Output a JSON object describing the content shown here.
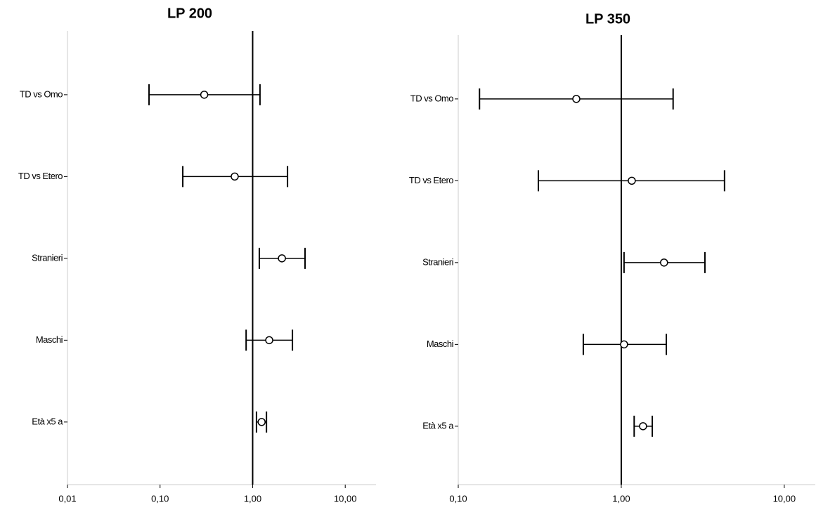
{
  "chart_data": [
    {
      "type": "forest",
      "title": "LP 200",
      "log_x": true,
      "categories": [
        "TD vs Omo",
        "TD vs Etero",
        "Stranieri",
        "Maschi",
        "Età x5 a"
      ],
      "values": [
        0.3,
        0.64,
        2.07,
        1.51,
        1.25
      ],
      "lower": [
        0.076,
        0.176,
        1.18,
        0.85,
        1.1
      ],
      "upper": [
        1.2,
        2.38,
        3.68,
        2.69,
        1.41
      ],
      "reference_line": 1,
      "xlim": [
        0.01,
        21.5
      ],
      "xticks": [
        {
          "value": 0.01,
          "label": "0,01"
        },
        {
          "value": 0.1,
          "label": "0,10"
        },
        {
          "value": 1,
          "label": "1,00"
        },
        {
          "value": 10,
          "label": "10,00"
        }
      ]
    },
    {
      "type": "forest",
      "title": "LP 350",
      "log_x": true,
      "categories": [
        "TD vs Omo",
        "TD vs Etero",
        "Stranieri",
        "Maschi",
        "Età x5 a"
      ],
      "values": [
        0.53,
        1.16,
        1.83,
        1.04,
        1.36
      ],
      "lower": [
        0.135,
        0.31,
        1.04,
        0.585,
        1.2
      ],
      "upper": [
        2.08,
        4.3,
        3.26,
        1.89,
        1.55
      ],
      "reference_line": 1,
      "xlim": [
        0.1,
        15.5
      ],
      "xticks": [
        {
          "value": 0.1,
          "label": "0,10"
        },
        {
          "value": 1,
          "label": "1,00"
        },
        {
          "value": 10,
          "label": "10,00"
        }
      ]
    }
  ]
}
